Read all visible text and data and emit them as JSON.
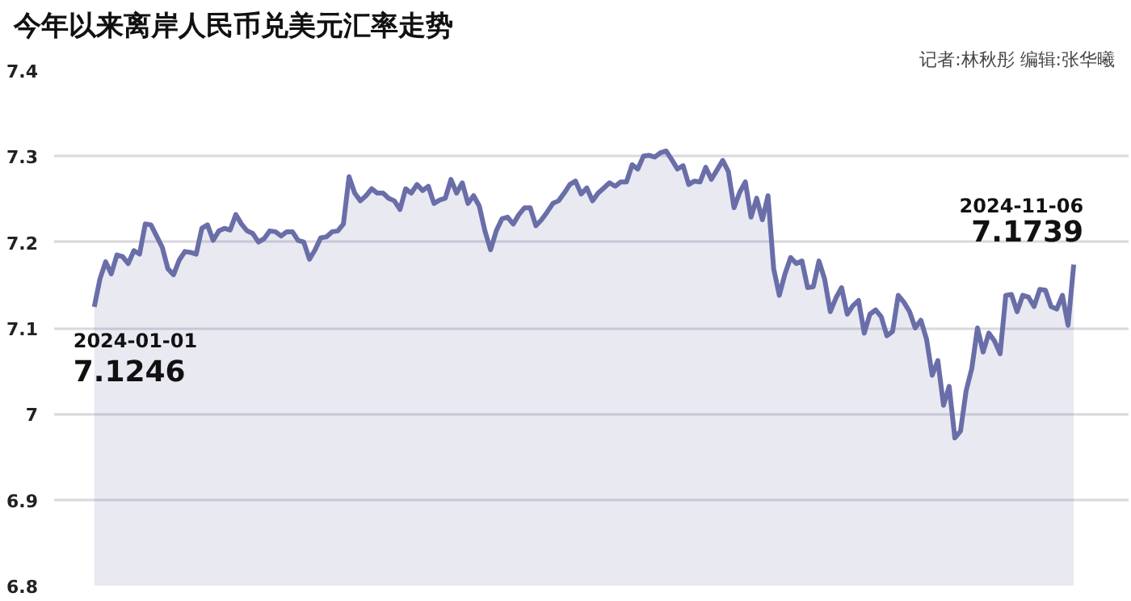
{
  "chart_data": {
    "type": "area",
    "title": "今年以来离岸人民币兑美元汇率走势",
    "annotations": [
      "记者:林秋彤  编辑:张华曦",
      "2024-01-01",
      "7.1246",
      "2024-11-06",
      "7.1739"
    ],
    "categories": [
      null,
      null,
      null,
      null,
      null,
      null,
      null,
      null,
      null,
      null,
      null,
      null,
      null,
      null,
      null,
      null,
      null,
      null,
      null,
      null,
      null,
      null,
      null,
      null,
      null,
      null,
      null,
      null,
      null,
      null,
      null,
      null,
      null,
      null,
      null,
      null,
      null,
      null,
      null,
      null,
      null,
      null,
      null,
      null,
      null,
      null,
      null,
      null,
      null,
      null,
      null,
      null,
      null,
      null,
      null,
      null,
      null,
      null,
      null,
      null,
      null,
      null,
      null,
      null,
      null,
      null,
      null,
      null,
      null,
      null,
      null,
      null,
      null,
      null,
      null,
      null,
      null,
      null,
      null,
      null,
      null,
      null,
      null,
      null,
      null,
      null,
      null,
      null,
      null,
      null,
      null,
      null,
      null,
      null,
      null,
      null,
      null,
      null,
      null,
      null,
      null,
      null,
      null,
      null,
      null,
      null,
      null,
      null,
      null,
      null,
      null,
      null,
      null,
      null,
      null,
      null,
      null,
      null,
      null,
      null,
      null,
      null,
      null,
      null,
      null,
      null,
      null,
      null,
      null,
      null,
      null,
      null,
      null,
      null,
      null,
      null,
      null,
      null,
      null,
      null,
      null,
      null,
      null,
      null,
      null,
      null,
      null,
      null,
      null,
      null,
      null,
      null,
      null,
      null,
      null,
      null,
      null,
      null,
      null,
      null,
      null,
      null,
      null,
      null,
      null,
      null,
      null,
      null,
      null,
      null,
      null,
      null,
      null,
      null
    ],
    "series": [
      {
        "color": "#6a6ea8",
        "values": [
          7.1246,
          7.157,
          7.177,
          7.163,
          7.185,
          7.183,
          7.175,
          7.19,
          7.186,
          7.221,
          7.22,
          7.207,
          7.194,
          7.169,
          7.162,
          7.179,
          7.189,
          7.188,
          7.186,
          7.216,
          7.22,
          7.202,
          7.213,
          7.216,
          7.214,
          7.232,
          7.221,
          7.213,
          7.21,
          7.2,
          7.204,
          7.213,
          7.212,
          7.207,
          7.212,
          7.212,
          7.202,
          7.2,
          7.18,
          7.191,
          7.205,
          7.206,
          7.212,
          7.213,
          7.221,
          7.276,
          7.257,
          7.248,
          7.254,
          7.262,
          7.257,
          7.257,
          7.251,
          7.248,
          7.238,
          7.262,
          7.257,
          7.267,
          7.26,
          7.265,
          7.245,
          7.249,
          7.251,
          7.273,
          7.257,
          7.269,
          7.245,
          7.254,
          7.242,
          7.213,
          7.191,
          7.213,
          7.227,
          7.229,
          7.221,
          7.232,
          7.24,
          7.24,
          7.219,
          7.226,
          7.235,
          7.245,
          7.248,
          7.257,
          7.267,
          7.271,
          7.256,
          7.263,
          7.248,
          7.257,
          7.263,
          7.269,
          7.265,
          7.27,
          7.27,
          7.29,
          7.285,
          7.3,
          7.301,
          7.299,
          7.304,
          7.306,
          7.296,
          7.285,
          7.289,
          7.267,
          7.271,
          7.27,
          7.287,
          7.273,
          7.284,
          7.295,
          7.282,
          7.24,
          7.258,
          7.27,
          7.229,
          7.251,
          7.226,
          7.254,
          7.169,
          7.138,
          7.163,
          7.182,
          7.175,
          7.178,
          7.147,
          7.148,
          7.178,
          7.157,
          7.119,
          7.135,
          7.147,
          7.116,
          7.126,
          7.132,
          7.094,
          7.116,
          7.121,
          7.113,
          7.091,
          7.096,
          7.138,
          7.13,
          7.119,
          7.1,
          7.109,
          7.087,
          7.045,
          7.062,
          7.01,
          7.032,
          6.972,
          6.98,
          7.027,
          7.053,
          7.1,
          7.072,
          7.094,
          7.085,
          7.07,
          7.138,
          7.139,
          7.119,
          7.138,
          7.136,
          7.125,
          7.145,
          7.144,
          7.125,
          7.122,
          7.138,
          7.103,
          7.1739
        ]
      }
    ],
    "ylim": [
      6.8,
      7.4
    ],
    "yticks": [
      6.8,
      6.9,
      7,
      7.1,
      7.2,
      7.3,
      7.4
    ],
    "tick_labels": "y",
    "grid": "y"
  }
}
